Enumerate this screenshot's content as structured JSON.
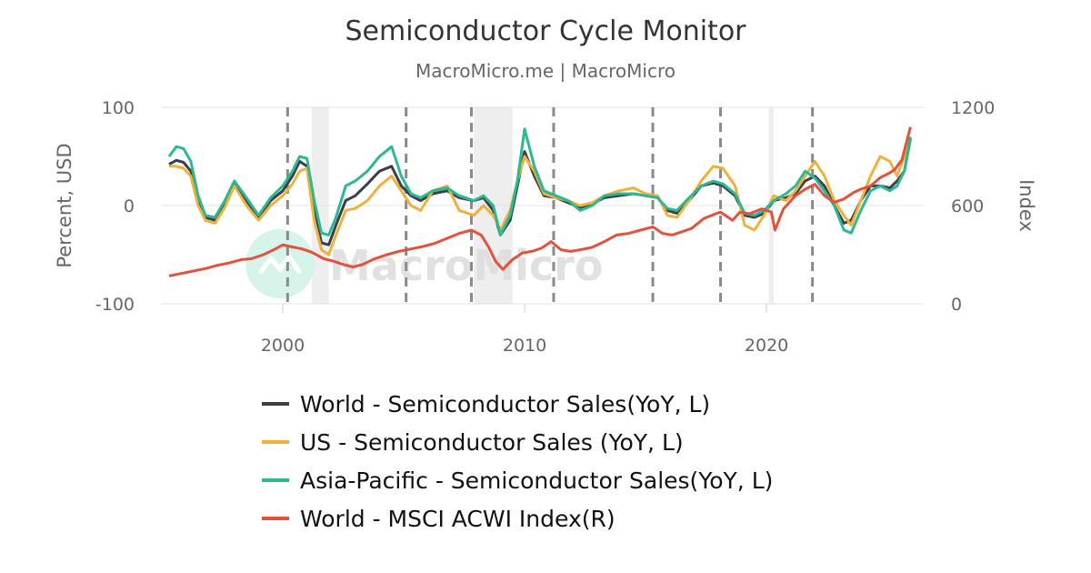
{
  "title": "Semiconductor Cycle Monitor",
  "subtitle": "MacroMicro.me | MacroMicro",
  "watermark": "MacroMicro",
  "chart_data": {
    "type": "line",
    "x_unit": "year",
    "xlim": [
      1995.0,
      2026.5
    ],
    "x_ticks": [
      "2000",
      "2010",
      "2020"
    ],
    "left_axis": {
      "title": "Percent, USD",
      "ylim": [
        -100,
        100
      ],
      "ticks": [
        "100",
        "0",
        "-100"
      ]
    },
    "right_axis": {
      "title": "Index",
      "ylim": [
        0,
        1200
      ],
      "ticks": [
        "1200",
        "600",
        "0"
      ]
    },
    "grid": "horizontal",
    "legend_position": "bottom",
    "shaded_recessions": [
      [
        2001.2,
        2001.9
      ],
      [
        2007.9,
        2009.5
      ],
      [
        2020.1,
        2020.3
      ]
    ],
    "cycle_markers": [
      2000.2,
      2005.1,
      2007.8,
      2011.2,
      2015.3,
      2018.1,
      2021.9
    ],
    "series": [
      {
        "name": "World - Semiconductor Sales(YoY, L)",
        "color": "#3a3f4b",
        "axis": "left",
        "x": [
          1995.3,
          1995.6,
          1995.9,
          1996.2,
          1996.5,
          1996.8,
          1997.2,
          1997.6,
          1998.0,
          1998.5,
          1999.0,
          1999.5,
          2000.0,
          2000.4,
          2000.7,
          2001.0,
          2001.3,
          2001.6,
          2001.9,
          2002.2,
          2002.6,
          2003.0,
          2003.5,
          2004.0,
          2004.5,
          2004.9,
          2005.3,
          2005.7,
          2006.2,
          2006.8,
          2007.3,
          2007.9,
          2008.3,
          2008.7,
          2009.0,
          2009.4,
          2009.7,
          2010.0,
          2010.4,
          2010.8,
          2011.3,
          2011.8,
          2012.3,
          2012.8,
          2013.3,
          2013.9,
          2014.5,
          2015.0,
          2015.5,
          2015.9,
          2016.3,
          2016.8,
          2017.3,
          2017.8,
          2018.2,
          2018.7,
          2019.1,
          2019.5,
          2019.9,
          2020.3,
          2020.8,
          2021.2,
          2021.6,
          2022.0,
          2022.4,
          2022.8,
          2023.2,
          2023.5,
          2023.9,
          2024.3,
          2024.7,
          2025.1,
          2025.4,
          2025.7,
          2025.95
        ],
        "y": [
          42,
          46,
          44,
          35,
          5,
          -12,
          -15,
          2,
          22,
          5,
          -12,
          5,
          15,
          30,
          45,
          40,
          -5,
          -38,
          -40,
          -20,
          5,
          10,
          22,
          35,
          40,
          20,
          10,
          5,
          12,
          15,
          8,
          5,
          8,
          -5,
          -30,
          -15,
          20,
          55,
          30,
          10,
          8,
          3,
          -2,
          2,
          8,
          10,
          12,
          10,
          8,
          -5,
          -8,
          5,
          20,
          23,
          20,
          10,
          -10,
          -12,
          -8,
          5,
          8,
          12,
          25,
          30,
          20,
          0,
          -18,
          -15,
          5,
          20,
          20,
          18,
          25,
          35,
          68
        ]
      },
      {
        "name": "US - Semiconductor Sales (YoY, L)",
        "color": "#f0b13c",
        "axis": "left",
        "x": [
          1995.3,
          1995.6,
          1995.9,
          1996.2,
          1996.5,
          1996.8,
          1997.2,
          1997.6,
          1998.0,
          1998.5,
          1999.0,
          1999.5,
          2000.0,
          2000.4,
          2000.7,
          2001.0,
          2001.3,
          2001.6,
          2001.9,
          2002.2,
          2002.6,
          2003.0,
          2003.5,
          2004.0,
          2004.5,
          2004.9,
          2005.3,
          2005.7,
          2006.2,
          2006.8,
          2007.3,
          2007.9,
          2008.3,
          2008.7,
          2009.0,
          2009.4,
          2009.7,
          2010.0,
          2010.4,
          2010.8,
          2011.3,
          2011.8,
          2012.3,
          2012.8,
          2013.3,
          2013.9,
          2014.5,
          2015.0,
          2015.5,
          2015.9,
          2016.3,
          2016.8,
          2017.3,
          2017.8,
          2018.2,
          2018.7,
          2019.1,
          2019.5,
          2019.9,
          2020.3,
          2020.8,
          2021.2,
          2021.6,
          2022.0,
          2022.4,
          2022.8,
          2023.2,
          2023.5,
          2023.9,
          2024.3,
          2024.7,
          2025.1,
          2025.4,
          2025.7,
          2025.95
        ],
        "y": [
          40,
          40,
          38,
          30,
          0,
          -15,
          -18,
          -2,
          20,
          0,
          -15,
          0,
          10,
          22,
          35,
          38,
          -15,
          -45,
          -50,
          -30,
          -5,
          -3,
          5,
          20,
          30,
          15,
          0,
          -5,
          15,
          20,
          -5,
          -10,
          0,
          -10,
          -25,
          -5,
          25,
          50,
          35,
          12,
          8,
          5,
          0,
          3,
          10,
          15,
          18,
          12,
          10,
          -10,
          -12,
          5,
          25,
          40,
          38,
          20,
          -20,
          -25,
          -10,
          10,
          5,
          15,
          30,
          45,
          30,
          5,
          -10,
          -20,
          5,
          30,
          50,
          45,
          30,
          50,
          70
        ]
      },
      {
        "name": "Asia-Pacific - Semiconductor Sales(YoY, L)",
        "color": "#2cb893",
        "axis": "left",
        "x": [
          1995.3,
          1995.6,
          1995.9,
          1996.2,
          1996.5,
          1996.8,
          1997.2,
          1997.6,
          1998.0,
          1998.5,
          1999.0,
          1999.5,
          2000.0,
          2000.4,
          2000.7,
          2001.0,
          2001.3,
          2001.6,
          2001.9,
          2002.2,
          2002.6,
          2003.0,
          2003.5,
          2004.0,
          2004.5,
          2004.9,
          2005.3,
          2005.7,
          2006.2,
          2006.8,
          2007.3,
          2007.9,
          2008.3,
          2008.7,
          2009.0,
          2009.4,
          2009.7,
          2010.0,
          2010.4,
          2010.8,
          2011.3,
          2011.8,
          2012.3,
          2012.8,
          2013.3,
          2013.9,
          2014.5,
          2015.0,
          2015.5,
          2015.9,
          2016.3,
          2016.8,
          2017.3,
          2017.8,
          2018.2,
          2018.7,
          2019.1,
          2019.5,
          2019.9,
          2020.3,
          2020.8,
          2021.2,
          2021.6,
          2022.0,
          2022.4,
          2022.8,
          2023.2,
          2023.5,
          2023.9,
          2024.3,
          2024.7,
          2025.1,
          2025.4,
          2025.7,
          2025.95
        ],
        "y": [
          50,
          60,
          58,
          45,
          10,
          -10,
          -12,
          5,
          25,
          8,
          -10,
          8,
          20,
          35,
          50,
          48,
          5,
          -28,
          -30,
          -12,
          20,
          25,
          35,
          50,
          60,
          30,
          12,
          8,
          15,
          18,
          10,
          5,
          10,
          0,
          -30,
          -10,
          25,
          78,
          40,
          15,
          10,
          5,
          -5,
          0,
          10,
          12,
          12,
          10,
          8,
          -3,
          -5,
          8,
          20,
          25,
          22,
          12,
          -8,
          -10,
          -5,
          5,
          12,
          20,
          35,
          28,
          15,
          0,
          -25,
          -28,
          -5,
          15,
          20,
          15,
          20,
          35,
          70
        ]
      },
      {
        "name": "World - MSCI ACWI Index(R)",
        "color": "#e2523c",
        "axis": "right",
        "x": [
          1995.3,
          1995.8,
          1996.3,
          1996.8,
          1997.3,
          1997.8,
          1998.3,
          1998.7,
          1999.2,
          1999.7,
          2000.0,
          2000.3,
          2000.8,
          2001.2,
          2001.7,
          2002.1,
          2002.5,
          2002.9,
          2003.3,
          2003.8,
          2004.3,
          2004.8,
          2005.3,
          2005.8,
          2006.3,
          2006.8,
          2007.3,
          2007.8,
          2008.2,
          2008.5,
          2008.8,
          2009.1,
          2009.5,
          2009.9,
          2010.3,
          2010.7,
          2011.1,
          2011.5,
          2011.9,
          2012.3,
          2012.8,
          2013.3,
          2013.8,
          2014.3,
          2014.8,
          2015.3,
          2015.7,
          2016.1,
          2016.5,
          2016.9,
          2017.4,
          2017.9,
          2018.1,
          2018.6,
          2018.9,
          2019.3,
          2019.8,
          2020.2,
          2020.35,
          2020.7,
          2021.2,
          2021.6,
          2022.0,
          2022.4,
          2022.8,
          2023.2,
          2023.6,
          2023.9,
          2024.3,
          2024.7,
          2025.1,
          2025.3,
          2025.6,
          2025.95
        ],
        "y": [
          170,
          185,
          200,
          215,
          235,
          250,
          270,
          275,
          300,
          335,
          360,
          350,
          335,
          315,
          275,
          260,
          240,
          225,
          240,
          275,
          300,
          320,
          335,
          350,
          370,
          400,
          430,
          450,
          420,
          350,
          260,
          210,
          270,
          310,
          320,
          340,
          380,
          330,
          320,
          330,
          345,
          380,
          420,
          430,
          450,
          470,
          430,
          420,
          440,
          460,
          520,
          550,
          560,
          510,
          560,
          550,
          580,
          560,
          450,
          580,
          660,
          700,
          730,
          660,
          620,
          640,
          680,
          700,
          720,
          770,
          800,
          820,
          880,
          1080
        ]
      }
    ]
  }
}
